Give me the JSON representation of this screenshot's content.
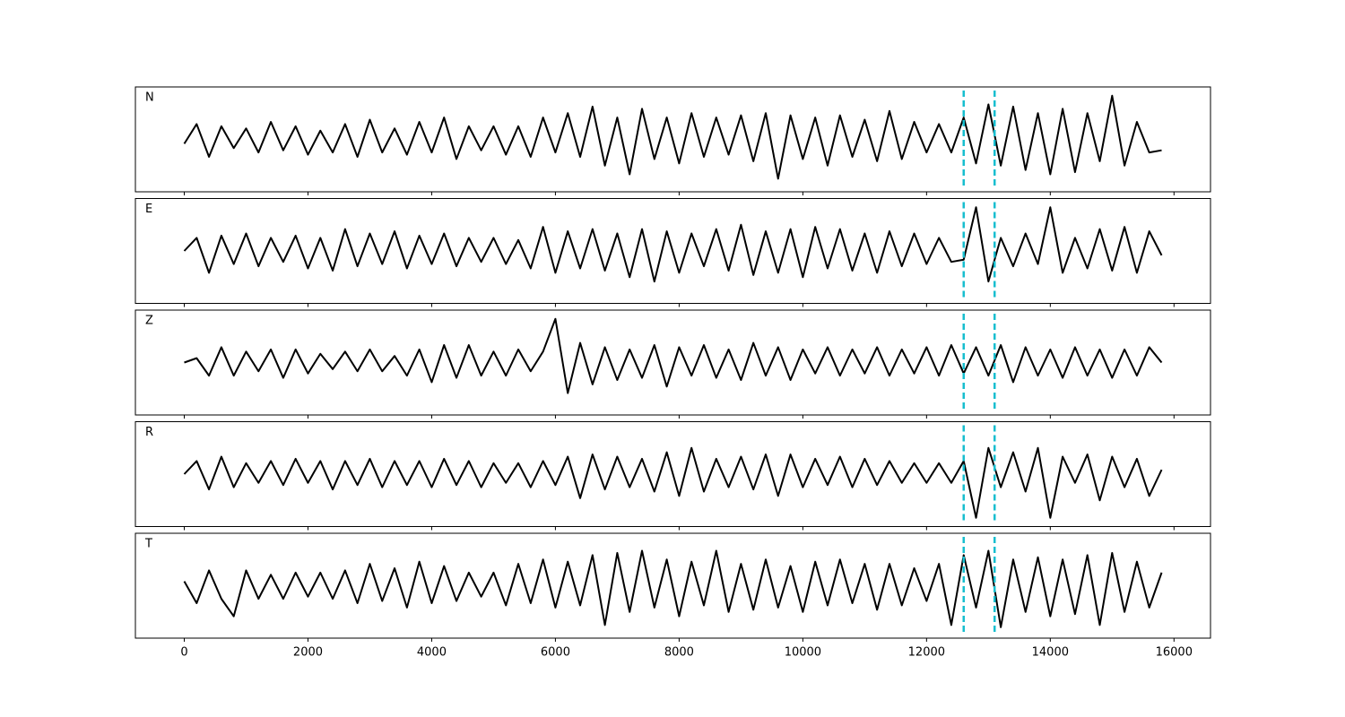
{
  "chart_data": {
    "type": "line",
    "x": [
      0,
      200,
      400,
      600,
      800,
      1000,
      1200,
      1400,
      1600,
      1800,
      2000,
      2200,
      2400,
      2600,
      2800,
      3000,
      3200,
      3400,
      3600,
      3800,
      4000,
      4200,
      4400,
      4600,
      4800,
      5000,
      5200,
      5400,
      5600,
      5800,
      6000,
      6200,
      6400,
      6600,
      6800,
      7000,
      7200,
      7400,
      7600,
      7800,
      8000,
      8200,
      8400,
      8600,
      8800,
      9000,
      9200,
      9400,
      9600,
      9800,
      10000,
      10200,
      10400,
      10600,
      10800,
      11000,
      11200,
      11400,
      11600,
      11800,
      12000,
      12200,
      12400,
      12600,
      12800,
      13000,
      13200,
      13400,
      13600,
      13800,
      14000,
      14200,
      14400,
      14600,
      14800,
      15000,
      15200,
      15400,
      15600,
      15800
    ],
    "xlim": [
      -790,
      16590
    ],
    "xticks": [
      0,
      2000,
      4000,
      6000,
      8000,
      10000,
      12000,
      14000,
      16000
    ],
    "ylim": [
      -1.2,
      1.2
    ],
    "vlines": [
      12600,
      13100
    ],
    "vline_color": "#17becf",
    "series": [
      {
        "name": "N",
        "color": "#000000",
        "values": [
          -0.1,
          0.35,
          -0.4,
          0.3,
          -0.2,
          0.25,
          -0.3,
          0.4,
          -0.25,
          0.3,
          -0.35,
          0.2,
          -0.3,
          0.35,
          -0.4,
          0.45,
          -0.3,
          0.25,
          -0.35,
          0.4,
          -0.3,
          0.5,
          -0.45,
          0.3,
          -0.25,
          0.3,
          -0.35,
          0.3,
          -0.4,
          0.5,
          -0.3,
          0.6,
          -0.4,
          0.75,
          -0.6,
          0.5,
          -0.8,
          0.7,
          -0.45,
          0.5,
          -0.55,
          0.6,
          -0.4,
          0.5,
          -0.35,
          0.55,
          -0.5,
          0.6,
          -0.9,
          0.55,
          -0.45,
          0.5,
          -0.6,
          0.55,
          -0.4,
          0.45,
          -0.5,
          0.65,
          -0.45,
          0.4,
          -0.3,
          0.35,
          -0.3,
          0.5,
          -0.55,
          0.8,
          -0.6,
          0.75,
          -0.7,
          0.6,
          -0.8,
          0.7,
          -0.75,
          0.6,
          -0.5,
          1.0,
          -0.6,
          0.4,
          -0.3,
          -0.25
        ]
      },
      {
        "name": "E",
        "color": "#000000",
        "values": [
          0.0,
          0.3,
          -0.5,
          0.35,
          -0.3,
          0.4,
          -0.35,
          0.3,
          -0.25,
          0.35,
          -0.4,
          0.3,
          -0.45,
          0.5,
          -0.35,
          0.4,
          -0.3,
          0.45,
          -0.4,
          0.35,
          -0.3,
          0.4,
          -0.35,
          0.3,
          -0.25,
          0.3,
          -0.3,
          0.25,
          -0.4,
          0.55,
          -0.5,
          0.45,
          -0.4,
          0.5,
          -0.45,
          0.4,
          -0.6,
          0.5,
          -0.7,
          0.45,
          -0.5,
          0.4,
          -0.35,
          0.5,
          -0.45,
          0.6,
          -0.55,
          0.45,
          -0.5,
          0.5,
          -0.6,
          0.55,
          -0.4,
          0.5,
          -0.45,
          0.4,
          -0.5,
          0.45,
          -0.35,
          0.4,
          -0.3,
          0.3,
          -0.25,
          -0.2,
          1.0,
          -0.7,
          0.3,
          -0.35,
          0.4,
          -0.3,
          1.0,
          -0.5,
          0.3,
          -0.4,
          0.5,
          -0.45,
          0.55,
          -0.5,
          0.45,
          -0.1
        ]
      },
      {
        "name": "Z",
        "color": "#000000",
        "values": [
          0.0,
          0.1,
          -0.3,
          0.35,
          -0.3,
          0.25,
          -0.2,
          0.3,
          -0.35,
          0.3,
          -0.25,
          0.2,
          -0.15,
          0.25,
          -0.2,
          0.3,
          -0.2,
          0.15,
          -0.3,
          0.3,
          -0.45,
          0.4,
          -0.35,
          0.4,
          -0.3,
          0.25,
          -0.3,
          0.3,
          -0.2,
          0.25,
          1.0,
          -0.7,
          0.45,
          -0.5,
          0.35,
          -0.4,
          0.3,
          -0.35,
          0.4,
          -0.55,
          0.35,
          -0.3,
          0.4,
          -0.35,
          0.3,
          -0.4,
          0.45,
          -0.3,
          0.35,
          -0.4,
          0.3,
          -0.25,
          0.35,
          -0.3,
          0.3,
          -0.25,
          0.35,
          -0.3,
          0.3,
          -0.25,
          0.35,
          -0.3,
          0.4,
          -0.25,
          0.35,
          -0.3,
          0.4,
          -0.45,
          0.35,
          -0.3,
          0.3,
          -0.35,
          0.35,
          -0.3,
          0.3,
          -0.35,
          0.3,
          -0.3,
          0.35,
          0.0
        ]
      },
      {
        "name": "R",
        "color": "#000000",
        "values": [
          0.0,
          0.3,
          -0.35,
          0.4,
          -0.3,
          0.25,
          -0.2,
          0.3,
          -0.25,
          0.35,
          -0.2,
          0.3,
          -0.35,
          0.3,
          -0.25,
          0.35,
          -0.3,
          0.3,
          -0.25,
          0.3,
          -0.3,
          0.35,
          -0.25,
          0.3,
          -0.3,
          0.25,
          -0.2,
          0.25,
          -0.3,
          0.3,
          -0.25,
          0.4,
          -0.55,
          0.45,
          -0.35,
          0.4,
          -0.3,
          0.35,
          -0.4,
          0.5,
          -0.5,
          0.6,
          -0.4,
          0.35,
          -0.3,
          0.4,
          -0.35,
          0.45,
          -0.5,
          0.45,
          -0.3,
          0.35,
          -0.25,
          0.4,
          -0.3,
          0.35,
          -0.25,
          0.3,
          -0.2,
          0.25,
          -0.2,
          0.25,
          -0.2,
          0.3,
          -1.0,
          0.6,
          -0.3,
          0.5,
          -0.4,
          0.6,
          -1.0,
          0.4,
          -0.2,
          0.45,
          -0.6,
          0.4,
          -0.3,
          0.35,
          -0.5,
          0.1
        ]
      },
      {
        "name": "T",
        "color": "#000000",
        "values": [
          0.1,
          -0.4,
          0.35,
          -0.3,
          -0.7,
          0.35,
          -0.3,
          0.25,
          -0.3,
          0.3,
          -0.25,
          0.3,
          -0.3,
          0.35,
          -0.4,
          0.5,
          -0.35,
          0.4,
          -0.5,
          0.55,
          -0.4,
          0.45,
          -0.35,
          0.3,
          -0.25,
          0.3,
          -0.45,
          0.5,
          -0.4,
          0.6,
          -0.5,
          0.55,
          -0.45,
          0.7,
          -0.9,
          0.75,
          -0.6,
          0.8,
          -0.5,
          0.6,
          -0.7,
          0.55,
          -0.45,
          0.8,
          -0.6,
          0.5,
          -0.55,
          0.6,
          -0.5,
          0.45,
          -0.6,
          0.55,
          -0.45,
          0.6,
          -0.4,
          0.5,
          -0.55,
          0.5,
          -0.45,
          0.4,
          -0.35,
          0.5,
          -0.9,
          0.7,
          -0.5,
          0.8,
          -0.95,
          0.6,
          -0.6,
          0.65,
          -0.7,
          0.6,
          -0.65,
          0.7,
          -0.9,
          0.75,
          -0.6,
          0.55,
          -0.5,
          0.3
        ]
      }
    ]
  }
}
